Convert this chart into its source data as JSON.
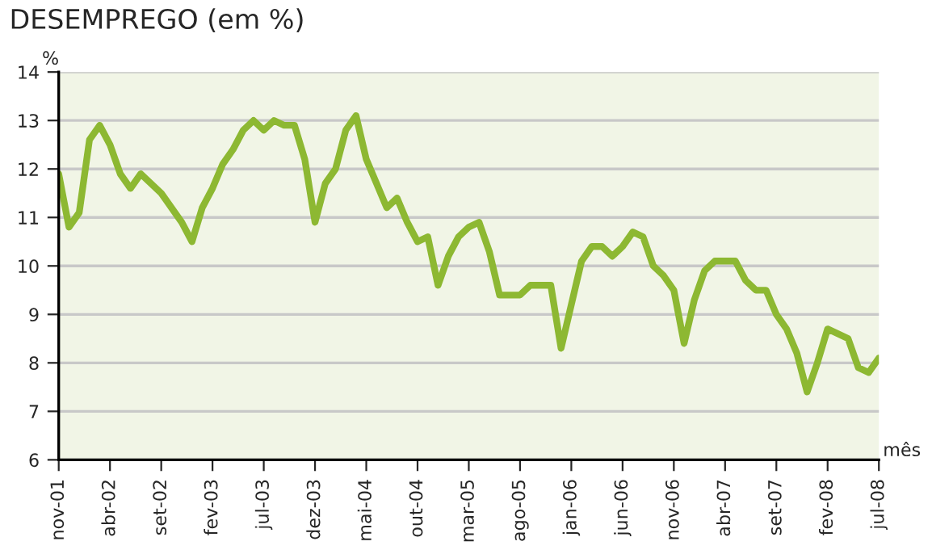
{
  "chart_data": {
    "type": "line",
    "title": "DESEMPREGO (em %)",
    "xlabel": "mês",
    "ylabel": "%",
    "categories": [
      "nov-01",
      null,
      null,
      null,
      null,
      "abr-02",
      null,
      null,
      null,
      null,
      "set-02",
      null,
      null,
      null,
      null,
      "fev-03",
      null,
      null,
      null,
      null,
      "jul-03",
      null,
      null,
      null,
      null,
      "dez-03",
      null,
      null,
      null,
      null,
      "mai-04",
      null,
      null,
      null,
      null,
      "out-04",
      null,
      null,
      null,
      null,
      "mar-05",
      null,
      null,
      null,
      null,
      "ago-05",
      null,
      null,
      null,
      null,
      "jan-06",
      null,
      null,
      null,
      null,
      "jun-06",
      null,
      null,
      null,
      null,
      "nov-06",
      null,
      null,
      null,
      null,
      "abr-07",
      null,
      null,
      null,
      null,
      "set-07",
      null,
      null,
      null,
      null,
      "fev-08",
      null,
      null,
      null,
      null,
      "jul-08"
    ],
    "series": [
      {
        "color": "#8db832",
        "values": [
          11.9,
          10.8,
          11.1,
          12.6,
          12.9,
          12.5,
          11.9,
          11.6,
          11.9,
          11.7,
          11.5,
          11.2,
          10.9,
          10.5,
          11.2,
          11.6,
          12.1,
          12.4,
          12.8,
          13.0,
          12.8,
          13.0,
          12.9,
          12.9,
          12.2,
          10.9,
          11.7,
          12.0,
          12.8,
          13.1,
          12.2,
          11.7,
          11.2,
          11.4,
          10.9,
          10.5,
          10.6,
          9.6,
          10.2,
          10.6,
          10.8,
          10.9,
          10.3,
          9.4,
          9.4,
          9.4,
          9.6,
          9.6,
          9.6,
          8.3,
          9.2,
          10.1,
          10.4,
          10.4,
          10.2,
          10.4,
          10.7,
          10.6,
          10.0,
          9.8,
          9.5,
          8.4,
          9.3,
          9.9,
          10.1,
          10.1,
          10.1,
          9.7,
          9.5,
          9.5,
          9.0,
          8.7,
          8.2,
          7.4,
          8.0,
          8.7,
          8.6,
          8.5,
          7.9,
          7.8,
          8.1
        ]
      }
    ],
    "ylim": [
      6,
      14
    ],
    "yticks": [
      6,
      7,
      8,
      9,
      10,
      11,
      12,
      13,
      14
    ],
    "grid": "y",
    "marker": "none",
    "line_style": "solid"
  }
}
